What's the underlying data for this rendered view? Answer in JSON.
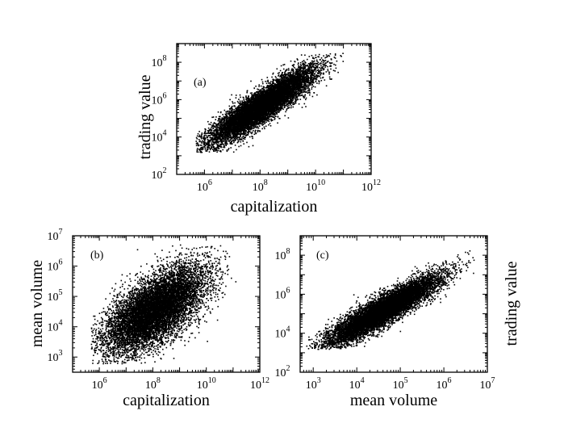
{
  "chart_data": [
    {
      "type": "scatter",
      "panel_label": "(a)",
      "xlabel": "capitalization",
      "ylabel": "trading value",
      "xscale": "log",
      "yscale": "log",
      "xlim": [
        100000,
        1000000000000
      ],
      "ylim": [
        100,
        1000000000
      ],
      "xticks": [
        {
          "base": "10",
          "exp": "6"
        },
        {
          "base": "10",
          "exp": "8"
        },
        {
          "base": "10",
          "exp": "10"
        },
        {
          "base": "10",
          "exp": "12"
        }
      ],
      "yticks": [
        {
          "base": "10",
          "exp": "2"
        },
        {
          "base": "10",
          "exp": "4"
        },
        {
          "base": "10",
          "exp": "6"
        },
        {
          "base": "10",
          "exp": "8"
        }
      ],
      "cloud": {
        "n": 9000,
        "x_median": 120000000,
        "x_log_sd": 0.95,
        "x_min": 500000,
        "x_max": 150000000000,
        "slope": 0.95,
        "intercept": -2.0,
        "y_log_sd": 0.45,
        "y_min": 1500,
        "y_max": 300000000
      },
      "legend": "none",
      "grid": false
    },
    {
      "type": "scatter",
      "panel_label": "(b)",
      "xlabel": "capitalization",
      "ylabel": "mean volume",
      "xscale": "log",
      "yscale": "log",
      "xlim": [
        100000,
        1000000000000
      ],
      "ylim": [
        316,
        10000000
      ],
      "xticks": [
        {
          "base": "10",
          "exp": "6"
        },
        {
          "base": "10",
          "exp": "8"
        },
        {
          "base": "10",
          "exp": "10"
        },
        {
          "base": "10",
          "exp": "12"
        }
      ],
      "yticks": [
        {
          "base": "10",
          "exp": "3"
        },
        {
          "base": "10",
          "exp": "4"
        },
        {
          "base": "10",
          "exp": "5"
        },
        {
          "base": "10",
          "exp": "6"
        },
        {
          "base": "10",
          "exp": "7"
        }
      ],
      "cloud": {
        "n": 9000,
        "x_median": 120000000,
        "x_log_sd": 0.95,
        "x_min": 500000,
        "x_max": 150000000000,
        "slope": 0.5,
        "intercept": 0.5,
        "y_log_sd": 0.55,
        "y_min": 600,
        "y_max": 5000000
      },
      "legend": "none",
      "grid": false
    },
    {
      "type": "scatter",
      "panel_label": "(c)",
      "xlabel": "mean volume",
      "ylabel": "trading value",
      "xscale": "log",
      "yscale": "log",
      "xlim": [
        500,
        10000000
      ],
      "ylim": [
        100,
        1000000000
      ],
      "xticks": [
        {
          "base": "10",
          "exp": "3"
        },
        {
          "base": "10",
          "exp": "4"
        },
        {
          "base": "10",
          "exp": "5"
        },
        {
          "base": "10",
          "exp": "6"
        },
        {
          "base": "10",
          "exp": "7"
        }
      ],
      "yticks": [
        {
          "base": "10",
          "exp": "2"
        },
        {
          "base": "10",
          "exp": "4"
        },
        {
          "base": "10",
          "exp": "6"
        },
        {
          "base": "10",
          "exp": "8"
        }
      ],
      "cloud": {
        "n": 9000,
        "x_median": 40000,
        "x_log_sd": 0.65,
        "x_min": 700,
        "x_max": 5000000,
        "slope": 1.25,
        "intercept": -0.6,
        "y_log_sd": 0.38,
        "y_min": 1500,
        "y_max": 400000000
      },
      "legend": "none",
      "grid": false
    }
  ]
}
